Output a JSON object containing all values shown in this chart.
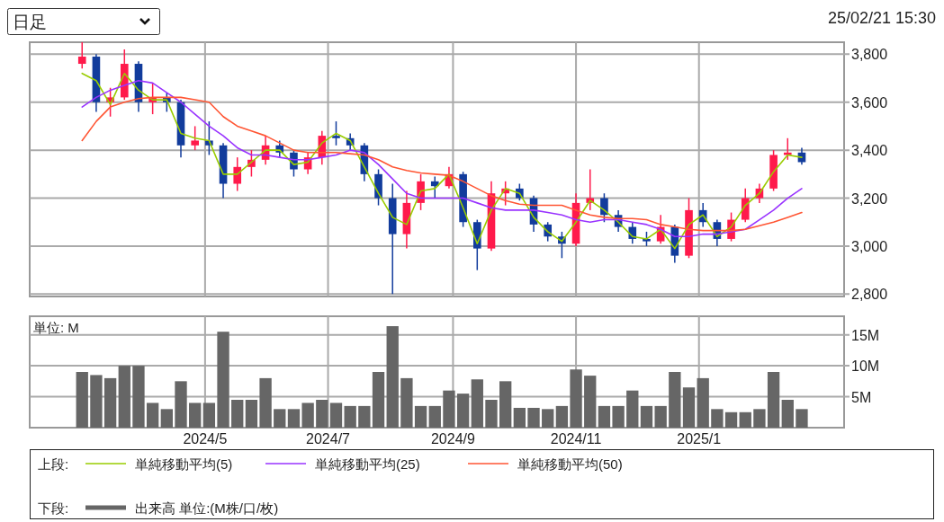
{
  "chart_data": [
    {
      "type": "candlestick",
      "annotations": [
        "日足",
        "25/02/21 15:30"
      ],
      "legend_title": "上段:",
      "legend": "bottom",
      "grid": true,
      "tick_labels": "y",
      "xlim": [
        "2024-02-04",
        "2025-03-14"
      ],
      "xticks": [
        {
          "value": "2024-05-01",
          "label": null
        },
        {
          "value": "2024-07-01",
          "label": null
        },
        {
          "value": "2024-09-01",
          "label": null
        },
        {
          "value": "2024-11-01",
          "label": null
        },
        {
          "value": "2025-01-01",
          "label": null
        }
      ],
      "ylim": [
        2790,
        3850
      ],
      "yticks": [
        {
          "value": 2800,
          "label": "2,800"
        },
        {
          "value": 3000,
          "label": "3,000"
        },
        {
          "value": 3200,
          "label": "3,200"
        },
        {
          "value": 3400,
          "label": "3,400"
        },
        {
          "value": 3600,
          "label": "3,600"
        },
        {
          "value": 3800,
          "label": "3,800"
        }
      ],
      "x": [
        "2024-03-01",
        "2024-03-08",
        "2024-03-15",
        "2024-03-22",
        "2024-03-29",
        "2024-04-05",
        "2024-04-12",
        "2024-04-19",
        "2024-04-26",
        "2024-05-03",
        "2024-05-10",
        "2024-05-17",
        "2024-05-24",
        "2024-05-31",
        "2024-06-07",
        "2024-06-14",
        "2024-06-21",
        "2024-06-28",
        "2024-07-05",
        "2024-07-12",
        "2024-07-19",
        "2024-07-26",
        "2024-08-02",
        "2024-08-09",
        "2024-08-16",
        "2024-08-23",
        "2024-08-30",
        "2024-09-06",
        "2024-09-13",
        "2024-09-20",
        "2024-09-27",
        "2024-10-04",
        "2024-10-11",
        "2024-10-18",
        "2024-10-25",
        "2024-11-01",
        "2024-11-08",
        "2024-11-15",
        "2024-11-22",
        "2024-11-29",
        "2024-12-06",
        "2024-12-13",
        "2024-12-20",
        "2024-12-27",
        "2025-01-03",
        "2025-01-10",
        "2025-01-17",
        "2025-01-24",
        "2025-01-31",
        "2025-02-07",
        "2025-02-14",
        "2025-02-21"
      ],
      "ohlc": [
        [
          3760,
          3850,
          3740,
          3790
        ],
        [
          3790,
          3800,
          3560,
          3600
        ],
        [
          3600,
          3660,
          3540,
          3620
        ],
        [
          3620,
          3820,
          3610,
          3760
        ],
        [
          3760,
          3770,
          3560,
          3600
        ],
        [
          3600,
          3680,
          3550,
          3620
        ],
        [
          3620,
          3640,
          3560,
          3600
        ],
        [
          3600,
          3610,
          3370,
          3420
        ],
        [
          3420,
          3500,
          3400,
          3440
        ],
        [
          3440,
          3520,
          3380,
          3420
        ],
        [
          3420,
          3430,
          3200,
          3260
        ],
        [
          3260,
          3370,
          3230,
          3330
        ],
        [
          3330,
          3400,
          3290,
          3360
        ],
        [
          3360,
          3460,
          3340,
          3420
        ],
        [
          3420,
          3440,
          3370,
          3390
        ],
        [
          3390,
          3400,
          3290,
          3320
        ],
        [
          3320,
          3390,
          3300,
          3370
        ],
        [
          3370,
          3480,
          3340,
          3460
        ],
        [
          3460,
          3520,
          3420,
          3450
        ],
        [
          3450,
          3470,
          3400,
          3420
        ],
        [
          3420,
          3430,
          3270,
          3300
        ],
        [
          3300,
          3320,
          3170,
          3200
        ],
        [
          3200,
          3260,
          2800,
          3050
        ],
        [
          3050,
          3230,
          2990,
          3180
        ],
        [
          3180,
          3300,
          3150,
          3270
        ],
        [
          3270,
          3290,
          3200,
          3250
        ],
        [
          3250,
          3330,
          3240,
          3300
        ],
        [
          3300,
          3310,
          3080,
          3100
        ],
        [
          3100,
          3110,
          2900,
          2990
        ],
        [
          2990,
          3270,
          2980,
          3220
        ],
        [
          3220,
          3270,
          3170,
          3240
        ],
        [
          3240,
          3260,
          3190,
          3200
        ],
        [
          3200,
          3210,
          3060,
          3090
        ],
        [
          3090,
          3100,
          3020,
          3040
        ],
        [
          3040,
          3060,
          2950,
          3010
        ],
        [
          3010,
          3220,
          3000,
          3180
        ],
        [
          3180,
          3320,
          3150,
          3200
        ],
        [
          3200,
          3220,
          3100,
          3130
        ],
        [
          3130,
          3150,
          3060,
          3080
        ],
        [
          3080,
          3100,
          3010,
          3030
        ],
        [
          3030,
          3060,
          3000,
          3020
        ],
        [
          3020,
          3130,
          3010,
          3080
        ],
        [
          3080,
          3090,
          2930,
          2960
        ],
        [
          2960,
          3200,
          2950,
          3150
        ],
        [
          3150,
          3180,
          3080,
          3100
        ],
        [
          3100,
          3110,
          3000,
          3030
        ],
        [
          3030,
          3140,
          3020,
          3110
        ],
        [
          3110,
          3240,
          3100,
          3200
        ],
        [
          3200,
          3260,
          3180,
          3240
        ],
        [
          3240,
          3400,
          3230,
          3380
        ],
        [
          3380,
          3450,
          3360,
          3390
        ],
        [
          3390,
          3410,
          3340,
          3350
        ]
      ],
      "colors": [
        "#ff1a4b",
        "#123c9c",
        "#ff1a4b",
        "#ff1a4b",
        "#123c9c",
        "#ff1a4b",
        "#123c9c",
        "#123c9c",
        "#ff1a4b",
        "#123c9c",
        "#123c9c",
        "#ff1a4b",
        "#ff1a4b",
        "#ff1a4b",
        "#123c9c",
        "#123c9c",
        "#ff1a4b",
        "#ff1a4b",
        "#123c9c",
        "#123c9c",
        "#123c9c",
        "#123c9c",
        "#123c9c",
        "#ff1a4b",
        "#ff1a4b",
        "#123c9c",
        "#ff1a4b",
        "#123c9c",
        "#123c9c",
        "#ff1a4b",
        "#ff1a4b",
        "#123c9c",
        "#123c9c",
        "#123c9c",
        "#123c9c",
        "#ff1a4b",
        "#ff1a4b",
        "#123c9c",
        "#123c9c",
        "#123c9c",
        "#123c9c",
        "#ff1a4b",
        "#123c9c",
        "#ff1a4b",
        "#123c9c",
        "#123c9c",
        "#ff1a4b",
        "#ff1a4b",
        "#ff1a4b",
        "#ff1a4b",
        "#ff1a4b",
        "#123c9c"
      ],
      "series": [
        {
          "type": "line",
          "name": "単純移動平均(5)",
          "color": "#99cc00",
          "values": [
            3720,
            3690,
            3590,
            3720,
            3650,
            3610,
            3610,
            3470,
            3450,
            3440,
            3300,
            3300,
            3350,
            3400,
            3400,
            3340,
            3350,
            3430,
            3470,
            3440,
            3330,
            3220,
            3120,
            3090,
            3230,
            3240,
            3300,
            3160,
            3010,
            3150,
            3240,
            3220,
            3120,
            3060,
            3020,
            3100,
            3190,
            3150,
            3100,
            3040,
            3030,
            3070,
            2990,
            3090,
            3130,
            3040,
            3080,
            3170,
            3220,
            3310,
            3380,
            3370
          ]
        },
        {
          "type": "line",
          "name": "単純移動平均(25)",
          "color": "#9933ff",
          "values": [
            3580,
            3620,
            3650,
            3670,
            3690,
            3680,
            3640,
            3600,
            3550,
            3500,
            3460,
            3410,
            3380,
            3380,
            3370,
            3360,
            3360,
            3370,
            3380,
            3400,
            3390,
            3340,
            3280,
            3220,
            3200,
            3200,
            3200,
            3200,
            3180,
            3160,
            3150,
            3150,
            3150,
            3140,
            3130,
            3110,
            3100,
            3110,
            3110,
            3100,
            3090,
            3070,
            3040,
            3040,
            3050,
            3050,
            3060,
            3070,
            3110,
            3150,
            3200,
            3240
          ]
        },
        {
          "type": "line",
          "name": "単純移動平均(50)",
          "color": "#ff5533",
          "values": [
            3440,
            3520,
            3580,
            3600,
            3615,
            3620,
            3620,
            3620,
            3610,
            3600,
            3540,
            3500,
            3480,
            3460,
            3430,
            3400,
            3390,
            3390,
            3390,
            3385,
            3380,
            3360,
            3330,
            3315,
            3305,
            3300,
            3295,
            3270,
            3240,
            3210,
            3190,
            3175,
            3170,
            3170,
            3170,
            3150,
            3130,
            3120,
            3115,
            3115,
            3110,
            3090,
            3080,
            3070,
            3065,
            3065,
            3065,
            3070,
            3085,
            3100,
            3120,
            3140
          ]
        }
      ]
    },
    {
      "type": "bar",
      "annotations": [
        "単位: M"
      ],
      "legend_title": "下段:",
      "legend": "bottom",
      "grid": true,
      "xlim": [
        "2024-02-04",
        "2025-03-14"
      ],
      "xticks": [
        {
          "value": "2024-05-01",
          "label": "2024/5"
        },
        {
          "value": "2024-07-01",
          "label": "2024/7"
        },
        {
          "value": "2024-09-01",
          "label": "2024/9"
        },
        {
          "value": "2024-11-01",
          "label": "2024/11"
        },
        {
          "value": "2025-01-01",
          "label": "2025/1"
        }
      ],
      "ylim": [
        0,
        18
      ],
      "yticks": [
        {
          "value": 5,
          "label": "5M"
        },
        {
          "value": 10,
          "label": "10M"
        },
        {
          "value": 15,
          "label": "15M"
        }
      ],
      "x": [
        "2024-03-01",
        "2024-03-08",
        "2024-03-15",
        "2024-03-22",
        "2024-03-29",
        "2024-04-05",
        "2024-04-12",
        "2024-04-19",
        "2024-04-26",
        "2024-05-03",
        "2024-05-10",
        "2024-05-17",
        "2024-05-24",
        "2024-05-31",
        "2024-06-07",
        "2024-06-14",
        "2024-06-21",
        "2024-06-28",
        "2024-07-05",
        "2024-07-12",
        "2024-07-19",
        "2024-07-26",
        "2024-08-02",
        "2024-08-09",
        "2024-08-16",
        "2024-08-23",
        "2024-08-30",
        "2024-09-06",
        "2024-09-13",
        "2024-09-20",
        "2024-09-27",
        "2024-10-04",
        "2024-10-11",
        "2024-10-18",
        "2024-10-25",
        "2024-11-01",
        "2024-11-08",
        "2024-11-15",
        "2024-11-22",
        "2024-11-29",
        "2024-12-06",
        "2024-12-13",
        "2024-12-20",
        "2024-12-27",
        "2025-01-03",
        "2025-01-10",
        "2025-01-17",
        "2025-01-24",
        "2025-01-31",
        "2025-02-07",
        "2025-02-14",
        "2025-02-21"
      ],
      "series": [
        {
          "name": "出来高 単位:(M株/口/枚)",
          "color": "#666666",
          "values": [
            9,
            8.5,
            8,
            10,
            10,
            4,
            3,
            7.5,
            4,
            4,
            15.5,
            4.5,
            4.5,
            8,
            3,
            3,
            4,
            4.5,
            4,
            3.5,
            3.5,
            9,
            16.4,
            8,
            3.5,
            3.5,
            6,
            5.5,
            7.8,
            4.5,
            7.5,
            3.2,
            3.2,
            3,
            3.5,
            9.4,
            8.4,
            3.5,
            3.5,
            6,
            3.5,
            3.5,
            9,
            6.5,
            8,
            3,
            2.5,
            2.5,
            3,
            9,
            4.5,
            3
          ]
        }
      ]
    }
  ]
}
